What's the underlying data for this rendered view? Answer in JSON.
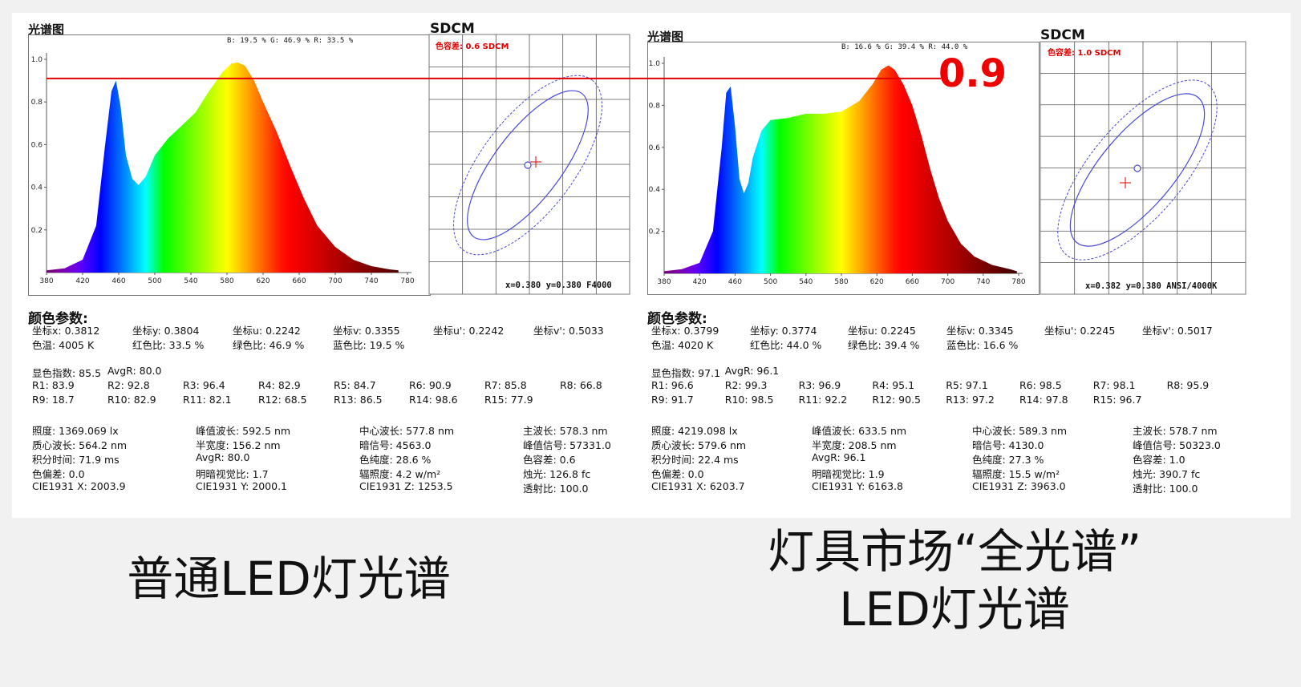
{
  "overlay_value": "0.9",
  "captions": {
    "left": "普通LED灯光谱",
    "right_line1": "灯具市场“全光谱”",
    "right_line2": "LED灯光谱"
  },
  "colors": {
    "reference_line": "#e00000",
    "ellipse": "#4a4ad8",
    "sdcm_red": "#e00000"
  },
  "panels": [
    {
      "spectrum_title": "光谱图",
      "ratio_text": "B: 19.5 %  G: 46.9 %  R: 33.5 %",
      "sdcm_title": "SDCM",
      "sdcm_label": "色容差: 0.6 SDCM",
      "sdcm_coords": "x=0.380 y=0.380 F4000",
      "params_title": "颜色参数:",
      "params_row1": [
        "坐标x: 0.3812",
        "坐标y: 0.3804",
        "坐标u: 0.2242",
        "坐标v: 0.3355",
        "坐标u': 0.2242",
        "坐标v': 0.5033"
      ],
      "params_row2": [
        "色温: 4005 K",
        "红色比: 33.5 %",
        "绿色比: 46.9 %",
        "蓝色比: 19.5 %"
      ],
      "cri_row0": [
        "显色指数: 85.5",
        "AvgR: 80.0"
      ],
      "cri_row1": [
        "R1: 83.9",
        "R2: 92.8",
        "R3: 96.4",
        "R4: 82.9",
        "R5: 84.7",
        "R6: 90.9",
        "R7: 85.8",
        "R8: 66.8"
      ],
      "cri_row2": [
        "R9: 18.7",
        "R10: 82.9",
        "R11: 82.1",
        "R12: 68.5",
        "R13: 86.5",
        "R14: 98.6",
        "R15: 77.9"
      ],
      "photo": [
        [
          "照度: 1369.069 lx",
          "峰值波长: 592.5 nm",
          "中心波长: 577.8 nm",
          "主波长: 578.3 nm"
        ],
        [
          "质心波长: 564.2 nm",
          "半宽度: 156.2 nm",
          "暗信号: 4563.0",
          "峰值信号: 57331.0"
        ],
        [
          "积分时间: 71.9 ms",
          "AvgR: 80.0",
          "色纯度: 28.6 %",
          "色容差: 0.6"
        ],
        [
          "色偏差: 0.0",
          "明暗视觉比: 1.7",
          "辐照度: 4.2 w/m²",
          "烛光: 126.8 fc"
        ],
        [
          "CIE1931 X: 2003.9",
          "CIE1931 Y: 2000.1",
          "CIE1931 Z: 1253.5",
          "透射比: 100.0"
        ]
      ]
    },
    {
      "spectrum_title": "光谱图",
      "ratio_text": "B: 16.6 %  G: 39.4 %  R: 44.0 %",
      "sdcm_title": "SDCM",
      "sdcm_label": "色容差: 1.0 SDCM",
      "sdcm_coords": "x=0.382 y=0.380 ANSI/4000K",
      "params_title": "颜色参数:",
      "params_row1": [
        "坐标x: 0.3799",
        "坐标y: 0.3774",
        "坐标u: 0.2245",
        "坐标v: 0.3345",
        "坐标u': 0.2245",
        "坐标v': 0.5017"
      ],
      "params_row2": [
        "色温: 4020 K",
        "红色比: 44.0 %",
        "绿色比: 39.4 %",
        "蓝色比: 16.6 %"
      ],
      "cri_row0": [
        "显色指数: 97.1",
        "AvgR: 96.1"
      ],
      "cri_row1": [
        "R1: 96.6",
        "R2: 99.3",
        "R3: 96.9",
        "R4: 95.1",
        "R5: 97.1",
        "R6: 98.5",
        "R7: 98.1",
        "R8: 95.9"
      ],
      "cri_row2": [
        "R9: 91.7",
        "R10: 98.5",
        "R11: 92.2",
        "R12: 90.5",
        "R13: 97.2",
        "R14: 97.8",
        "R15: 96.7"
      ],
      "photo": [
        [
          "照度: 4219.098 lx",
          "峰值波长: 633.5 nm",
          "中心波长: 589.3 nm",
          "主波长: 578.7 nm"
        ],
        [
          "质心波长: 579.6 nm",
          "半宽度: 208.5 nm",
          "暗信号: 4130.0",
          "峰值信号: 50323.0"
        ],
        [
          "积分时间: 22.4 ms",
          "AvgR: 96.1",
          "色纯度: 27.3 %",
          "色容差: 1.0"
        ],
        [
          "色偏差: 0.0",
          "明暗视觉比: 1.9",
          "辐照度: 15.5 w/m²",
          "烛光: 390.7 fc"
        ],
        [
          "CIE1931 X: 6203.7",
          "CIE1931 Y: 6163.8",
          "CIE1931 Z: 3963.0",
          "透射比: 100.0"
        ]
      ]
    }
  ],
  "chart_data": [
    {
      "type": "area",
      "title": "光谱图",
      "xlabel": "",
      "ylabel": "",
      "xlim": [
        380,
        780
      ],
      "ylim": [
        0,
        1.0
      ],
      "xticks": [
        380,
        420,
        460,
        500,
        540,
        580,
        620,
        660,
        700,
        740,
        780
      ],
      "yticks": [
        0.2,
        0.4,
        0.6,
        0.8,
        1.0
      ],
      "x": [
        380,
        400,
        420,
        435,
        445,
        452,
        457,
        462,
        468,
        475,
        482,
        490,
        500,
        515,
        530,
        545,
        560,
        575,
        585,
        592,
        600,
        610,
        620,
        635,
        650,
        665,
        680,
        700,
        720,
        740,
        760,
        770
      ],
      "y": [
        0.01,
        0.02,
        0.06,
        0.22,
        0.6,
        0.85,
        0.9,
        0.78,
        0.55,
        0.44,
        0.41,
        0.45,
        0.55,
        0.63,
        0.69,
        0.75,
        0.85,
        0.94,
        0.98,
        0.985,
        0.97,
        0.9,
        0.8,
        0.66,
        0.5,
        0.35,
        0.22,
        0.12,
        0.06,
        0.03,
        0.015,
        0.01
      ],
      "reference_line_y": 0.91
    },
    {
      "type": "area",
      "title": "光谱图",
      "xlabel": "",
      "ylabel": "",
      "xlim": [
        380,
        780
      ],
      "ylim": [
        0,
        1.0
      ],
      "xticks": [
        380,
        420,
        460,
        500,
        540,
        580,
        620,
        660,
        700,
        740,
        780
      ],
      "yticks": [
        0.2,
        0.4,
        0.6,
        0.8,
        1.0
      ],
      "x": [
        380,
        400,
        420,
        435,
        445,
        450,
        455,
        460,
        465,
        470,
        475,
        480,
        490,
        500,
        520,
        540,
        560,
        580,
        600,
        615,
        625,
        633,
        640,
        650,
        660,
        670,
        680,
        690,
        700,
        715,
        730,
        750,
        770,
        778
      ],
      "y": [
        0.01,
        0.02,
        0.05,
        0.2,
        0.6,
        0.86,
        0.89,
        0.7,
        0.45,
        0.38,
        0.43,
        0.55,
        0.68,
        0.73,
        0.74,
        0.76,
        0.76,
        0.77,
        0.82,
        0.9,
        0.97,
        0.99,
        0.97,
        0.9,
        0.8,
        0.66,
        0.5,
        0.36,
        0.25,
        0.14,
        0.08,
        0.04,
        0.02,
        0.01
      ],
      "reference_line_y": 0.91
    },
    {
      "type": "scatter",
      "title": "SDCM",
      "sdcm": 0.6,
      "measured": {
        "x": 0.3812,
        "y": 0.3804
      },
      "target": {
        "x": 0.38,
        "y": 0.38,
        "label": "F4000"
      }
    },
    {
      "type": "scatter",
      "title": "SDCM",
      "sdcm": 1.0,
      "measured": {
        "x": 0.3799,
        "y": 0.3774
      },
      "target": {
        "x": 0.382,
        "y": 0.38,
        "label": "ANSI/4000K"
      }
    }
  ]
}
